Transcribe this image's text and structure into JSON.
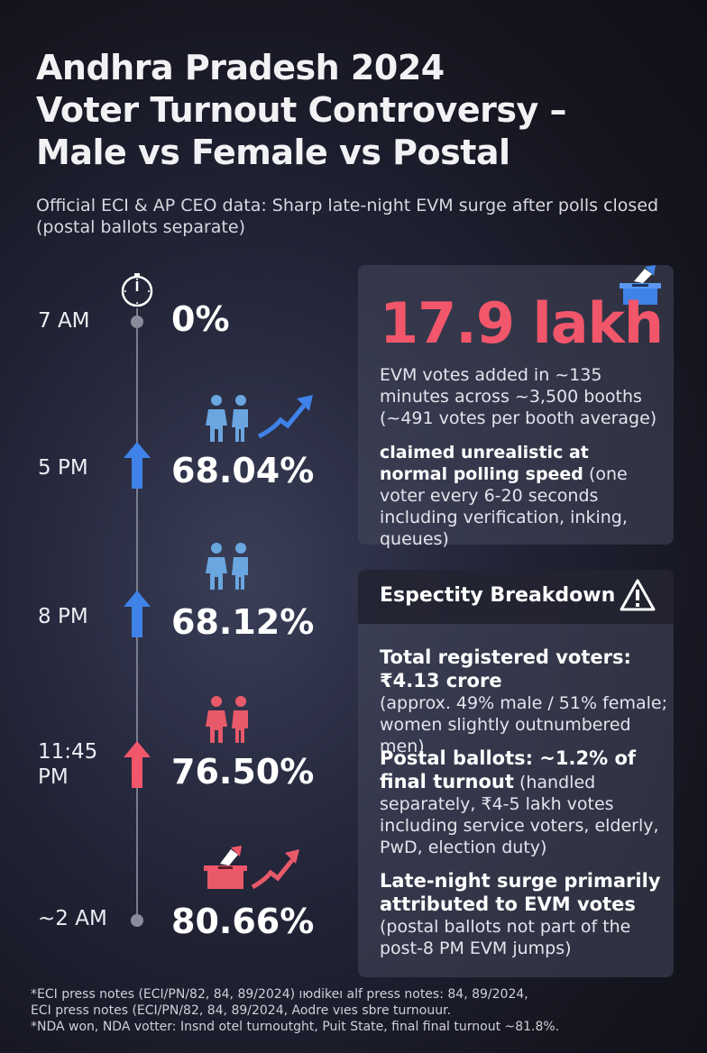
{
  "title_lines": [
    "Andhra Pradesh 2024",
    "Voter Turnout Controversy –",
    "Male vs Female vs Postal"
  ],
  "subtitle": "Official ECI & AP CEO data: Sharp late-night EVM surge after polls closed (postal ballots separate)",
  "timeline": [
    {
      "time": "7 AM",
      "value": "0%"
    },
    {
      "time": "5 PM",
      "value": "68.04%"
    },
    {
      "time": "8 PM",
      "value": "68.12%"
    },
    {
      "time": "11:45\nPM",
      "value": "76.50%"
    },
    {
      "time": "~2 AM",
      "value": "80.66%"
    }
  ],
  "colors": {
    "accent_red": "#f2566a",
    "accent_blue": "#3f82e8",
    "people_blue": "#6aa6e0",
    "people_red": "#e85a6a"
  },
  "stat_card": {
    "number": "17.9 lakh",
    "desc": "EVM votes added in ~135 minutes across ~3,500 booths (~491 votes per booth average)",
    "claim_bold": "claimed unrealistic at normal polling speed",
    "claim_rest": " (one voter every 6-20 seconds including verification, inking, queues)"
  },
  "breakdown": {
    "title": "Espectity Breakdown",
    "items": [
      {
        "bold": "Total registered voters: ₹4.13 crore",
        "rest": "(approx. 49% male / 51% female; women slightly outnumbered men)"
      },
      {
        "bold": "Postal ballots: ~1.2% of final turnout",
        "rest": " (handled separately, ₹4-5 lakh votes including service voters, elderly, PwD, election duty)"
      },
      {
        "bold": "Late-night surge primarily attributed to EVM votes",
        "rest": " (postal ballots not part of the post-8 PM EVM jumps)"
      }
    ]
  },
  "footnotes": [
    "*ECI press notes (ECI/PN/82, 84, 89/2024) ıюdikeı alf press notes: 84, 89/2024,",
    " ECI press notes (ECI/PN/82, 84, 89/2024, Aodre vıes sbre turnouur.",
    "*NDA won, NDA votter: Insnd otel turnoutght, Puit State, final final turnout ~81.8%."
  ],
  "icons": [
    "clock-icon",
    "ballot-box-icon",
    "warning-icon",
    "people-icon",
    "trend-arrow-icon",
    "up-arrow-icon"
  ]
}
